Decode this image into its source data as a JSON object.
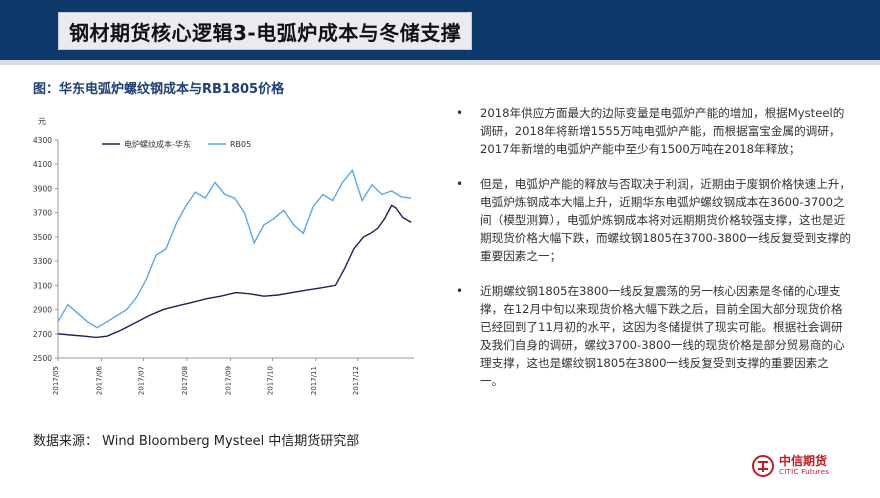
{
  "header": {
    "title": "钢材期货核心逻辑3-电弧炉成本与冬储支撑"
  },
  "chart_caption": "图：华东电弧炉螺纹钢成本与RB1805价格",
  "source_note": "数据来源：   Wind Bloomberg Mysteel 中信期货研究部",
  "bullets": [
    "2018年供应方面最大的边际变量是电弧炉产能的增加，根据Mysteel的调研，2018年将新增1555万吨电弧炉产能，而根据富宝金属的调研，2017年新增的电弧炉产能中至少有1500万吨在2018年释放；",
    "但是，电弧炉产能的释放与否取决于利润，近期由于废钢价格快速上升，电弧炉炼钢成本大幅上升，近期华东电弧炉螺纹钢成本在3600-3700之间（模型测算），电弧炉炼钢成本将对远期期货价格较强支撑，这也是近期现货价格大幅下跌，而螺纹钢1805在3700-3800一线反复受到支撑的重要因素之一；",
    "近期螺纹钢1805在3800一线反复震荡的另一核心因素是冬储的心理支撑，在12月中旬以来现货价格大幅下跌之后，目前全国大部分现货价格已经回到了11月初的水平，这因为冬储提供了现实可能。根据社会调研及我们自身的调研，螺纹3700-3800一线的现货价格是部分贸易商的心理支撑，这也是螺纹钢1805在3800一线反复受到支撑的重要因素之一。"
  ],
  "bullet_symbol": "•",
  "logo": {
    "cn": "中信期货",
    "en": "CITIC Futures",
    "icon": "citic-logo-icon"
  },
  "colors": {
    "header_bg": "#0e3a6b",
    "series_cost": "#1a2456",
    "series_rb": "#5aa9e6",
    "caption": "#1e3f73",
    "logo": "#c21a22"
  },
  "chart_data": {
    "type": "line",
    "title": "",
    "xlabel": "",
    "ylabel": "元",
    "ylim": [
      2500,
      4300
    ],
    "yticks": [
      2500,
      2700,
      2900,
      3100,
      3300,
      3500,
      3700,
      3900,
      4100,
      4300
    ],
    "xlim": [
      "2017-05-01",
      "2018-01-10"
    ],
    "xticks": [
      "2017/05",
      "2017/06",
      "2017/07",
      "2017/08",
      "2017/09",
      "2017/10",
      "2017/11",
      "2017/12"
    ],
    "grid": false,
    "legend_position": "top",
    "series": [
      {
        "name": "电炉螺纹成本-华东",
        "points": [
          [
            "2017-05-01",
            2700
          ],
          [
            "2017-05-10",
            2690
          ],
          [
            "2017-05-20",
            2680
          ],
          [
            "2017-05-28",
            2670
          ],
          [
            "2017-06-05",
            2680
          ],
          [
            "2017-06-15",
            2730
          ],
          [
            "2017-06-25",
            2790
          ],
          [
            "2017-07-05",
            2850
          ],
          [
            "2017-07-15",
            2900
          ],
          [
            "2017-07-25",
            2930
          ],
          [
            "2017-08-05",
            2960
          ],
          [
            "2017-08-15",
            2990
          ],
          [
            "2017-08-25",
            3010
          ],
          [
            "2017-09-05",
            3040
          ],
          [
            "2017-09-15",
            3030
          ],
          [
            "2017-09-25",
            3010
          ],
          [
            "2017-10-05",
            3020
          ],
          [
            "2017-10-15",
            3040
          ],
          [
            "2017-10-25",
            3060
          ],
          [
            "2017-11-05",
            3080
          ],
          [
            "2017-11-15",
            3100
          ],
          [
            "2017-11-22",
            3250
          ],
          [
            "2017-11-28",
            3400
          ],
          [
            "2017-12-05",
            3500
          ],
          [
            "2017-12-10",
            3530
          ],
          [
            "2017-12-15",
            3570
          ],
          [
            "2017-12-20",
            3650
          ],
          [
            "2017-12-25",
            3760
          ],
          [
            "2017-12-28",
            3740
          ],
          [
            "2018-01-02",
            3660
          ],
          [
            "2018-01-08",
            3620
          ]
        ]
      },
      {
        "name": "RB05",
        "points": [
          [
            "2017-05-01",
            2800
          ],
          [
            "2017-05-08",
            2940
          ],
          [
            "2017-05-15",
            2870
          ],
          [
            "2017-05-22",
            2800
          ],
          [
            "2017-05-29",
            2750
          ],
          [
            "2017-06-05",
            2800
          ],
          [
            "2017-06-12",
            2850
          ],
          [
            "2017-06-19",
            2900
          ],
          [
            "2017-06-26",
            3000
          ],
          [
            "2017-07-03",
            3150
          ],
          [
            "2017-07-10",
            3350
          ],
          [
            "2017-07-17",
            3400
          ],
          [
            "2017-07-24",
            3600
          ],
          [
            "2017-07-31",
            3750
          ],
          [
            "2017-08-07",
            3870
          ],
          [
            "2017-08-14",
            3820
          ],
          [
            "2017-08-21",
            3950
          ],
          [
            "2017-08-28",
            3850
          ],
          [
            "2017-09-04",
            3820
          ],
          [
            "2017-09-11",
            3700
          ],
          [
            "2017-09-18",
            3450
          ],
          [
            "2017-09-25",
            3600
          ],
          [
            "2017-10-02",
            3650
          ],
          [
            "2017-10-09",
            3720
          ],
          [
            "2017-10-16",
            3600
          ],
          [
            "2017-10-23",
            3530
          ],
          [
            "2017-10-30",
            3750
          ],
          [
            "2017-11-06",
            3850
          ],
          [
            "2017-11-13",
            3800
          ],
          [
            "2017-11-20",
            3950
          ],
          [
            "2017-11-27",
            4050
          ],
          [
            "2017-12-04",
            3800
          ],
          [
            "2017-12-11",
            3930
          ],
          [
            "2017-12-18",
            3850
          ],
          [
            "2017-12-25",
            3880
          ],
          [
            "2018-01-01",
            3830
          ],
          [
            "2018-01-08",
            3820
          ]
        ]
      }
    ]
  }
}
